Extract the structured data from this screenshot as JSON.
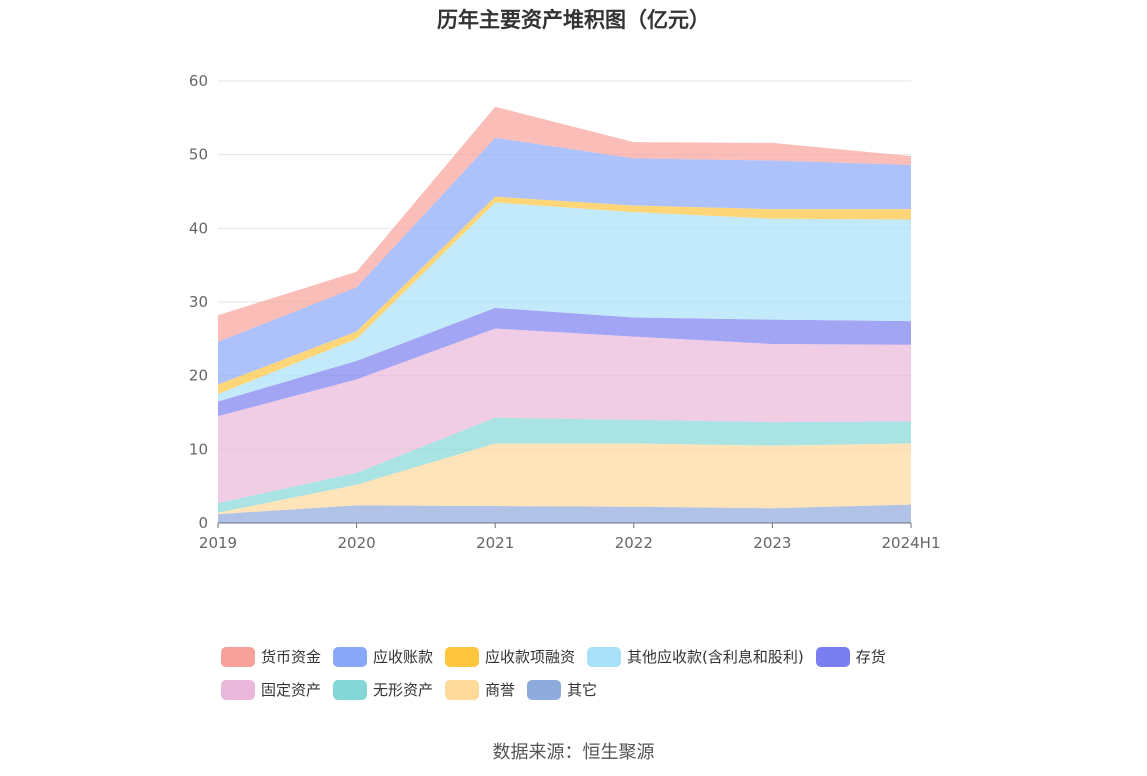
{
  "source": "数据来源：恒生聚源",
  "chart_data": {
    "type": "area",
    "stacked": true,
    "title": "历年主要资产堆积图（亿元）",
    "xlabel": "",
    "ylabel": "",
    "categories": [
      "2019",
      "2020",
      "2021",
      "2022",
      "2023",
      "2024H1"
    ],
    "ylim": [
      0,
      60
    ],
    "yticks": [
      0,
      10,
      20,
      30,
      40,
      50,
      60
    ],
    "grid": true,
    "legend_position": "bottom",
    "series": [
      {
        "name": "其它",
        "color": "#8faadc",
        "values": [
          1.2,
          2.4,
          2.3,
          2.2,
          2.0,
          2.5
        ]
      },
      {
        "name": "商誉",
        "color": "#fdd99a",
        "values": [
          0.2,
          2.8,
          8.5,
          8.6,
          8.5,
          8.3
        ]
      },
      {
        "name": "无形资产",
        "color": "#84d7d7",
        "values": [
          1.3,
          1.6,
          3.5,
          3.2,
          3.2,
          3.0
        ]
      },
      {
        "name": "固定资产",
        "color": "#e9b8da",
        "values": [
          11.8,
          12.7,
          12.1,
          11.3,
          10.6,
          10.4
        ]
      },
      {
        "name": "存货",
        "color": "#7b7ef0",
        "values": [
          2.0,
          2.5,
          2.8,
          2.6,
          3.3,
          3.2
        ]
      },
      {
        "name": "其他应收款(含利息和股利)",
        "color": "#a8e1f8",
        "values": [
          1.0,
          3.0,
          14.3,
          14.3,
          13.7,
          13.8
        ]
      },
      {
        "name": "应收款项融资",
        "color": "#ffc53d",
        "values": [
          1.3,
          1.0,
          0.8,
          0.9,
          1.3,
          1.4
        ]
      },
      {
        "name": "应收账款",
        "color": "#8aa8fa",
        "values": [
          5.8,
          6.0,
          8.0,
          6.4,
          6.6,
          6.0
        ]
      },
      {
        "name": "货币资金",
        "color": "#f8a19a",
        "values": [
          3.6,
          2.1,
          4.2,
          2.2,
          2.4,
          1.2
        ]
      }
    ]
  }
}
